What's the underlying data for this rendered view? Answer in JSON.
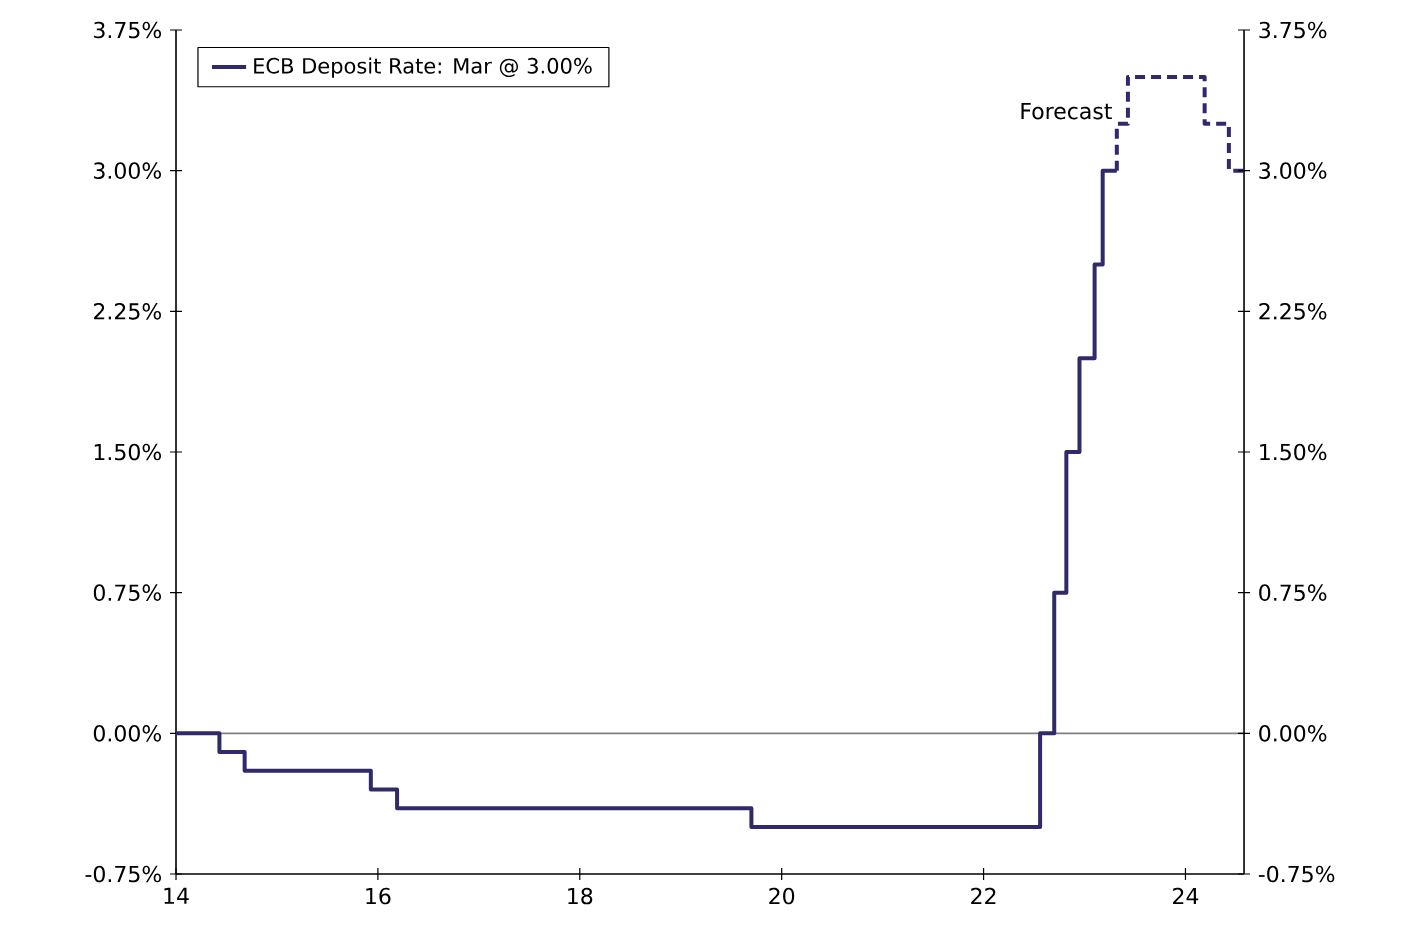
{
  "chart_data": {
    "type": "step",
    "xlim": [
      14,
      24.58
    ],
    "xticks": [
      14,
      16,
      18,
      20,
      22,
      24
    ],
    "ylim": [
      -0.75,
      3.75
    ],
    "yticks": [
      {
        "value": -0.75,
        "label": "-0.75%"
      },
      {
        "value": 0,
        "label": "0.00%"
      },
      {
        "value": 0.75,
        "label": "0.75%"
      },
      {
        "value": 1.5,
        "label": "1.50%"
      },
      {
        "value": 2.25,
        "label": "2.25%"
      },
      {
        "value": 3,
        "label": "3.00%"
      },
      {
        "value": 3.75,
        "label": "3.75%"
      }
    ],
    "y2lim": [
      -0.75,
      3.75
    ],
    "y2ticks": [
      {
        "value": -0.75,
        "label": "-0.75%"
      },
      {
        "value": 0,
        "label": "0.00%"
      },
      {
        "value": 0.75,
        "label": "0.75%"
      },
      {
        "value": 1.5,
        "label": "1.50%"
      },
      {
        "value": 2.25,
        "label": "2.25%"
      },
      {
        "value": 3,
        "label": "3.00%"
      },
      {
        "value": 3.75,
        "label": "3.75%"
      }
    ],
    "series": [
      {
        "name": "ECB Deposit Rate: Mar @ 3.00%",
        "color": "#302a6a",
        "line_style": "solid",
        "x": [
          14,
          14.43,
          14.68,
          15.93,
          16.19,
          19.7,
          22.56,
          22.7,
          22.82,
          22.95,
          23.1,
          23.18,
          23.32
        ],
        "values": [
          0,
          -0.1,
          -0.2,
          -0.3,
          -0.4,
          -0.5,
          0,
          0.75,
          1.5,
          2.0,
          2.5,
          3.0,
          3.0
        ]
      },
      {
        "color": "#302a6a",
        "line_style": "dashed",
        "x": [
          23.32,
          23.32,
          23.43,
          24.19,
          24.43,
          24.58
        ],
        "values": [
          3.0,
          3.25,
          3.5,
          3.25,
          3.0,
          3.0
        ]
      }
    ],
    "ref_lines": [
      {
        "axis": "y",
        "value": 0,
        "color": "#808080"
      }
    ],
    "annotations": [
      {
        "text": "Forecast",
        "x": 23.32,
        "y": 3.25
      }
    ],
    "legend": "top left",
    "grid": false,
    "marker": "none"
  }
}
